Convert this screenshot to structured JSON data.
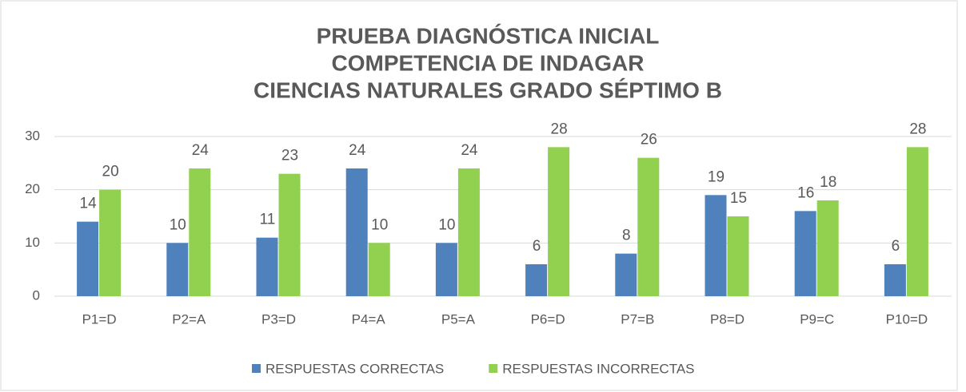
{
  "chart_data": {
    "type": "bar",
    "title": [
      "PRUEBA DIAGNÓSTICA INICIAL",
      "COMPETENCIA DE INDAGAR",
      "CIENCIAS NATURALES GRADO SÉPTIMO B"
    ],
    "categories": [
      "P1=D",
      "P2=A",
      "P3=D",
      "P4=A",
      "P5=A",
      "P6=D",
      "P7=B",
      "P8=D",
      "P9=C",
      "P10=D"
    ],
    "series": [
      {
        "name": "RESPUESTAS CORRECTAS",
        "color": "#4f81bd",
        "values": [
          14,
          10,
          11,
          24,
          10,
          6,
          8,
          19,
          16,
          6
        ]
      },
      {
        "name": "RESPUESTAS INCORRECTAS",
        "color": "#92d050",
        "values": [
          20,
          24,
          23,
          10,
          24,
          28,
          26,
          15,
          18,
          28
        ]
      }
    ],
    "ylim": [
      0,
      30
    ],
    "yticks": [
      0,
      10,
      20,
      30
    ],
    "grid": true,
    "legend": "bottom"
  }
}
